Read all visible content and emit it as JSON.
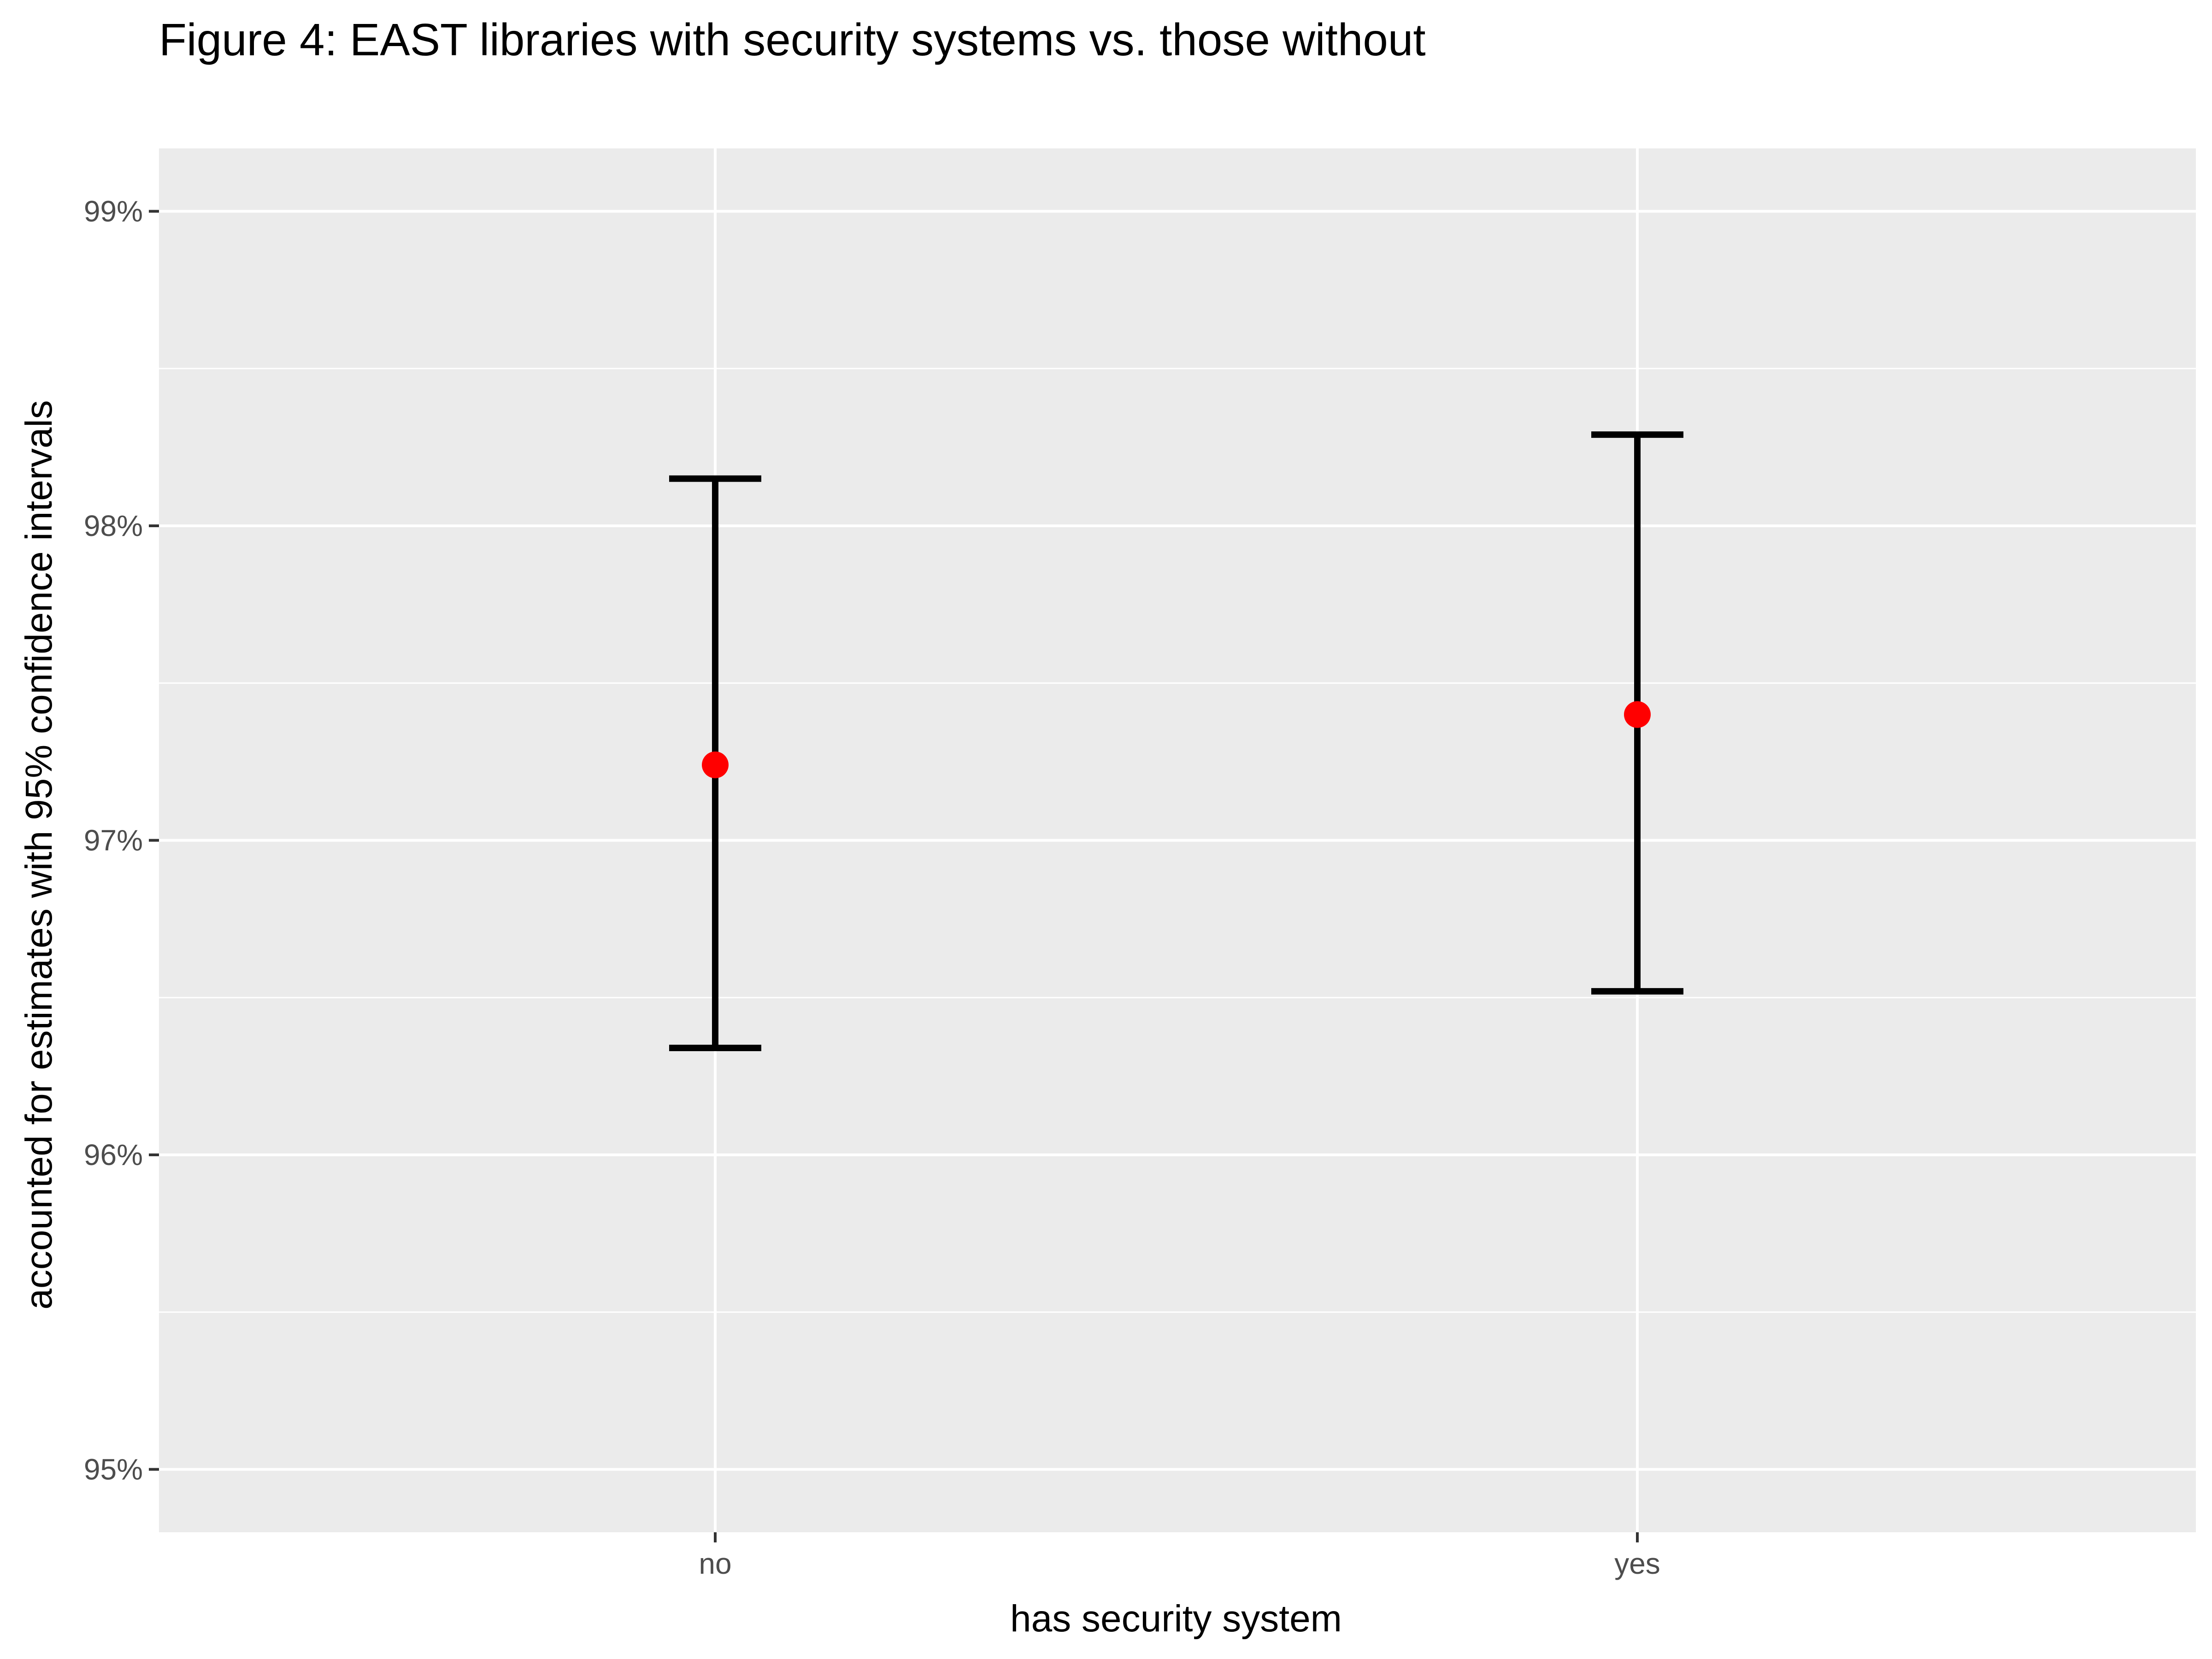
{
  "chart_data": {
    "type": "errorbar",
    "title": "Figure 4: EAST libraries with security systems vs. those without",
    "xlabel": "has security system",
    "ylabel": "accounted for estimates with 95% confidence intervals",
    "categories": [
      "no",
      "yes"
    ],
    "points": [
      {
        "category": "no",
        "estimate": 0.9724,
        "ci_low": 0.9634,
        "ci_high": 0.9815
      },
      {
        "category": "yes",
        "estimate": 0.974,
        "ci_low": 0.9652,
        "ci_high": 0.9829
      }
    ],
    "ylim": [
      0.948,
      0.992
    ],
    "y_ticks": [
      0.95,
      0.96,
      0.97,
      0.98,
      0.99
    ],
    "y_tick_labels": [
      "95%",
      "96%",
      "97%",
      "98%",
      "99%"
    ],
    "point_color": "#ff0000",
    "errorbar_color": "#000000",
    "panel_background": "#ebebeb",
    "grid_color": "#ffffff",
    "grid": true
  }
}
